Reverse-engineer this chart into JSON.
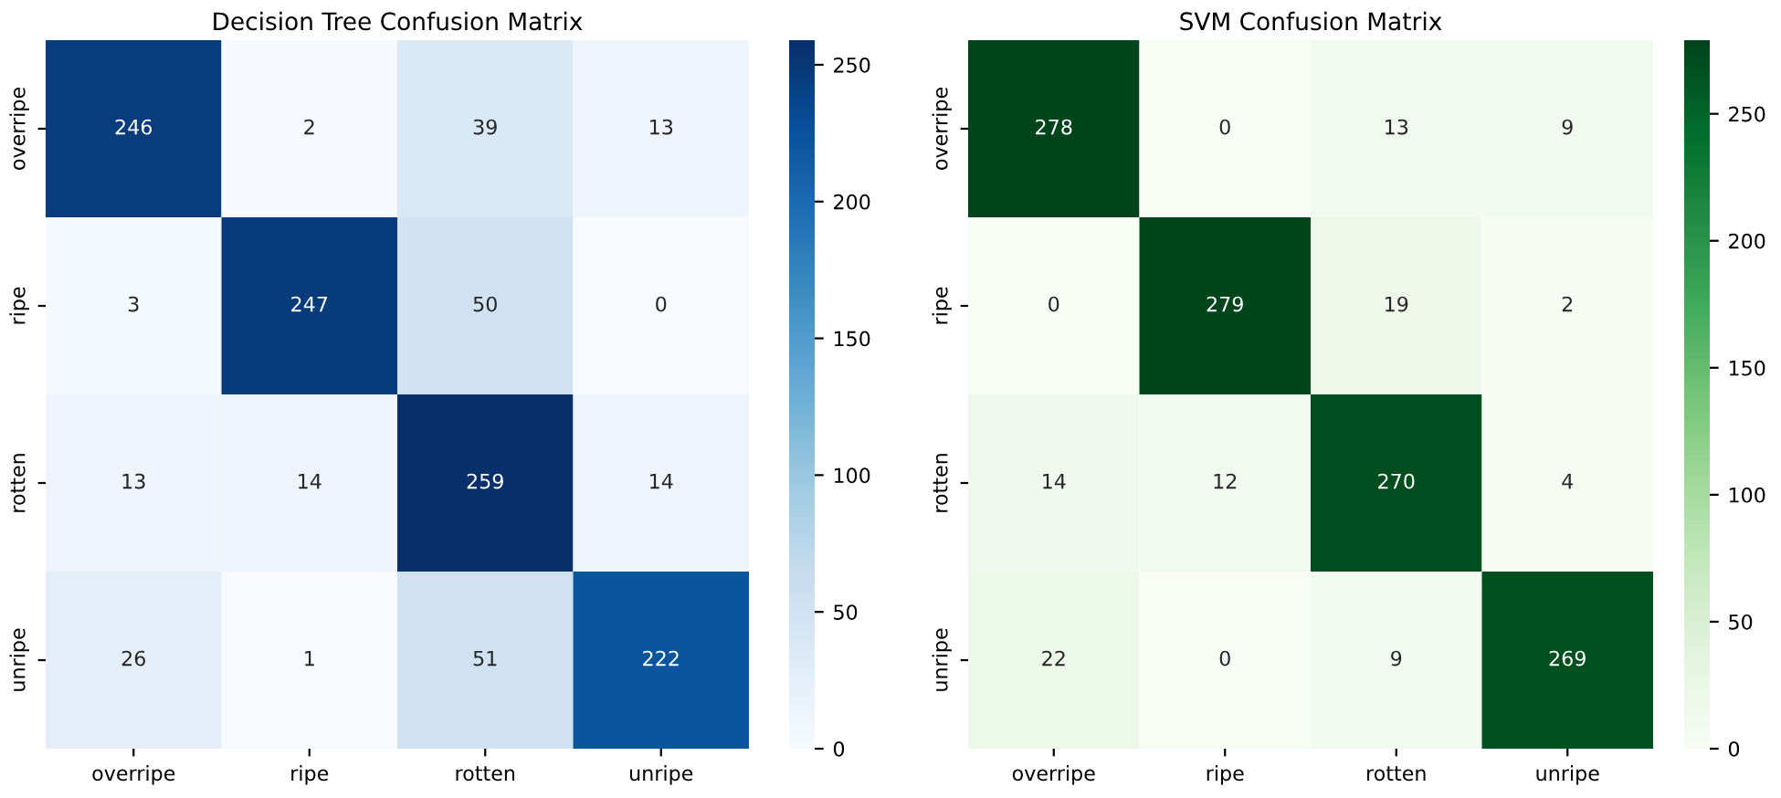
{
  "chart_data": [
    {
      "type": "heatmap",
      "title": "Decision Tree Confusion Matrix",
      "categories": [
        "overripe",
        "ripe",
        "rotten",
        "unripe"
      ],
      "y_categories": [
        "overripe",
        "ripe",
        "rotten",
        "unripe"
      ],
      "cells": [
        [
          246,
          2,
          39,
          13
        ],
        [
          3,
          247,
          50,
          0
        ],
        [
          13,
          14,
          259,
          14
        ],
        [
          26,
          1,
          51,
          222
        ]
      ],
      "clim": [
        0,
        259
      ],
      "cticks": [
        0,
        50,
        100,
        150,
        200,
        250
      ],
      "data_labels": true
    },
    {
      "type": "heatmap",
      "title": "SVM Confusion Matrix",
      "categories": [
        "overripe",
        "ripe",
        "rotten",
        "unripe"
      ],
      "y_categories": [
        "overripe",
        "ripe",
        "rotten",
        "unripe"
      ],
      "cells": [
        [
          278,
          0,
          13,
          9
        ],
        [
          0,
          279,
          19,
          2
        ],
        [
          14,
          12,
          270,
          4
        ],
        [
          22,
          0,
          9,
          269
        ]
      ],
      "clim": [
        0,
        279
      ],
      "cticks": [
        0,
        50,
        100,
        150,
        200,
        250
      ],
      "data_labels": true
    }
  ]
}
